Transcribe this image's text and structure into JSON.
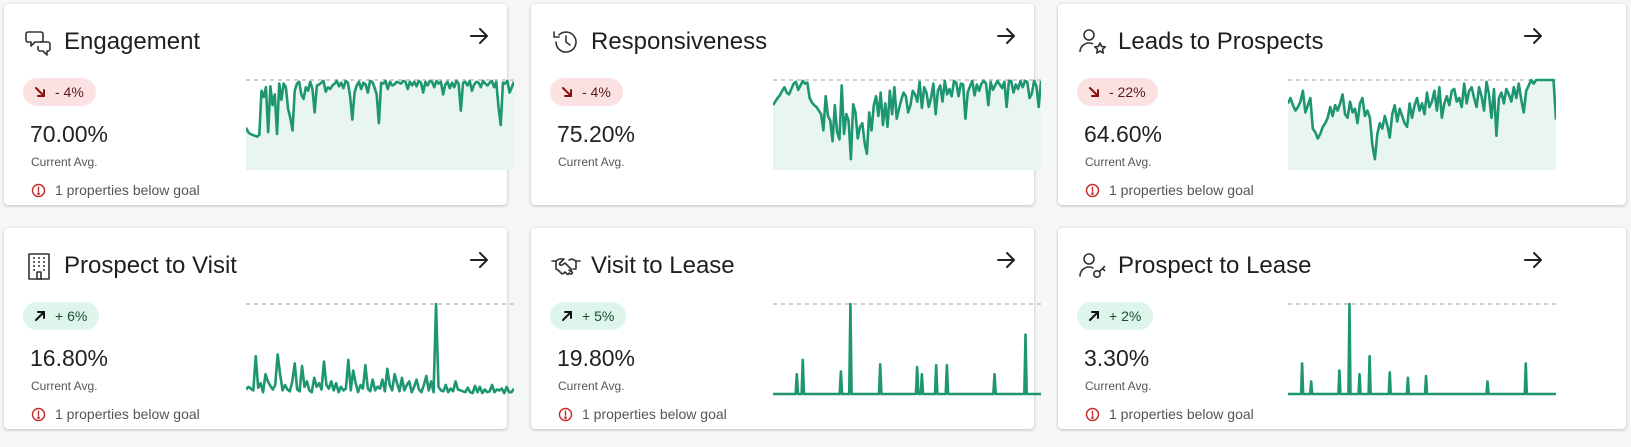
{
  "colors": {
    "line": "#1e9672",
    "fill": "#e9f6f0",
    "goal_dash": "#cfcfcf",
    "down_badge_bg": "#fbe1e1",
    "up_badge_bg": "#ddf5ea",
    "down_arrow": "#8b1010",
    "warn": "#c62828"
  },
  "cards": [
    {
      "title": "Engagement",
      "icon": "chat-bubbles-icon",
      "trend": "down",
      "change": "- 4%",
      "value": "70.00%",
      "caption": "Current Avg.",
      "below_goal": "1 properties below goal",
      "sparkline": {
        "filled": true,
        "goal": 100,
        "values": [
          47,
          42,
          40,
          39,
          38,
          37,
          39,
          88,
          81,
          92,
          42,
          93,
          72,
          84,
          40,
          96,
          78,
          96,
          92,
          68,
          58,
          44,
          88,
          96,
          98,
          84,
          79,
          92,
          88,
          98,
          90,
          64,
          94,
          95,
          97,
          99,
          87,
          92,
          90,
          94,
          96,
          99,
          93,
          97,
          91,
          99,
          97,
          82,
          56,
          86,
          94,
          98,
          90,
          97,
          95,
          86,
          99,
          98,
          92,
          84,
          52,
          97,
          96,
          99,
          90,
          98,
          94,
          95,
          98,
          97,
          96,
          99,
          98,
          90,
          98,
          94,
          98,
          93,
          99,
          97,
          86,
          98,
          94,
          99,
          98,
          92,
          99,
          96,
          98,
          84,
          95,
          98,
          91,
          97,
          92,
          99,
          96,
          66,
          97,
          98,
          94,
          99,
          88,
          95,
          98,
          97,
          92,
          99,
          96,
          94,
          97,
          99,
          92,
          98,
          70,
          50,
          97,
          96,
          99,
          86,
          92,
          98
        ]
      }
    },
    {
      "title": "Responsiveness",
      "icon": "history-clock-icon",
      "trend": "down",
      "change": "- 4%",
      "value": "75.20%",
      "caption": "Current Avg.",
      "below_goal": null,
      "sparkline": {
        "filled": true,
        "goal": 100,
        "values": [
          72,
          76,
          80,
          83,
          88,
          92,
          86,
          84,
          90,
          96,
          98,
          89,
          94,
          99,
          96,
          97,
          80,
          75,
          72,
          70,
          66,
          62,
          44,
          82,
          60,
          55,
          32,
          72,
          42,
          34,
          94,
          40,
          62,
          55,
          12,
          73,
          64,
          35,
          48,
          52,
          30,
          18,
          64,
          44,
          72,
          82,
          60,
          86,
          50,
          74,
          48,
          88,
          62,
          92,
          57,
          68,
          78,
          86,
          82,
          64,
          72,
          88,
          84,
          76,
          98,
          69,
          92,
          86,
          70,
          80,
          96,
          62,
          88,
          94,
          76,
          99,
          84,
          90,
          82,
          99,
          97,
          82,
          96,
          95,
          57,
          86,
          93,
          99,
          83,
          95,
          88,
          96,
          99,
          96,
          72,
          98,
          89,
          94,
          99,
          95,
          91,
          98,
          70,
          99,
          99,
          86,
          95,
          90,
          99,
          92,
          99,
          98,
          80,
          85,
          99,
          93,
          70,
          99
        ]
      }
    },
    {
      "title": "Leads to Prospects",
      "icon": "user-star-icon",
      "trend": "down",
      "change": "- 22%",
      "value": "64.60%",
      "caption": "Current Avg.",
      "below_goal": "1 properties below goal",
      "sparkline": {
        "filled": true,
        "goal": 100,
        "values": [
          74,
          80,
          72,
          66,
          70,
          76,
          88,
          64,
          72,
          80,
          46,
          42,
          35,
          40,
          48,
          52,
          58,
          70,
          60,
          72,
          66,
          74,
          84,
          62,
          58,
          76,
          64,
          68,
          52,
          74,
          80,
          60,
          66,
          58,
          28,
          12,
          40,
          52,
          46,
          60,
          50,
          36,
          62,
          72,
          54,
          68,
          60,
          52,
          48,
          74,
          58,
          72,
          80,
          66,
          74,
          62,
          86,
          70,
          76,
          88,
          66,
          92,
          58,
          74,
          82,
          72,
          88,
          90,
          76,
          80,
          70,
          96,
          74,
          88,
          92,
          80,
          70,
          92,
          82,
          66,
          98,
          84,
          58,
          90,
          38,
          80,
          86,
          74,
          90,
          84,
          76,
          92,
          80,
          96,
          78,
          64,
          88,
          94,
          100,
          96,
          100,
          100,
          100,
          100,
          100,
          100,
          100,
          100,
          56
        ]
      }
    },
    {
      "title": "Prospect to Visit",
      "icon": "building-icon",
      "trend": "up",
      "change": "+ 6%",
      "value": "16.80%",
      "caption": "Current Avg.",
      "below_goal": "1 properties below goal",
      "sparkline": {
        "filled": false,
        "goal": 100,
        "values": [
          5,
          8,
          6,
          4,
          42,
          7,
          12,
          2,
          22,
          14,
          9,
          5,
          10,
          44,
          22,
          4,
          10,
          5,
          3,
          14,
          34,
          5,
          3,
          31,
          8,
          14,
          4,
          2,
          18,
          8,
          12,
          5,
          36,
          10,
          6,
          14,
          4,
          12,
          2,
          8,
          4,
          6,
          38,
          4,
          26,
          12,
          2,
          10,
          6,
          32,
          6,
          3,
          16,
          4,
          8,
          6,
          16,
          3,
          28,
          10,
          4,
          22,
          12,
          3,
          18,
          4,
          10,
          14,
          2,
          8,
          16,
          5,
          2,
          10,
          20,
          4,
          14,
          2,
          100,
          8,
          4,
          3,
          10,
          2,
          6,
          3,
          14,
          5,
          4,
          3,
          2,
          7,
          2,
          1,
          9,
          2,
          8,
          1,
          5,
          2,
          3,
          10,
          2,
          5,
          4,
          6,
          1,
          8,
          2,
          2,
          6
        ]
      }
    },
    {
      "title": "Visit to Lease",
      "icon": "handshake-icon",
      "trend": "up",
      "change": "+ 5%",
      "value": "19.80%",
      "caption": "Current Avg.",
      "below_goal": "1 properties below goal",
      "sparkline": {
        "filled": false,
        "goal": 100,
        "values": [
          0,
          0,
          0,
          0,
          0,
          0,
          0,
          0,
          0,
          0,
          0,
          0,
          0,
          0,
          0,
          0,
          0,
          0,
          0,
          0,
          22,
          0,
          0,
          0,
          0,
          38,
          0,
          0,
          0,
          0,
          0,
          0,
          0,
          0,
          0,
          0,
          0,
          0,
          0,
          0,
          0,
          0,
          0,
          0,
          0,
          0,
          0,
          0,
          0,
          0,
          0,
          0,
          0,
          0,
          0,
          0,
          0,
          25,
          0,
          0,
          0,
          0,
          0,
          0,
          0,
          100,
          0,
          0,
          0,
          0,
          0,
          0,
          0,
          0,
          0,
          0,
          0,
          0,
          0,
          0,
          0,
          0,
          0,
          0,
          0,
          0,
          0,
          0,
          0,
          0,
          33,
          0,
          0,
          0,
          0,
          0,
          0,
          0,
          0,
          0,
          0,
          0,
          0,
          0,
          0,
          0,
          0,
          0,
          0,
          0,
          0,
          0,
          0,
          0,
          0,
          0,
          0,
          0,
          0,
          0,
          0,
          30,
          0,
          0,
          0,
          22,
          0,
          0,
          0,
          0,
          0,
          0,
          0,
          0,
          0,
          0,
          0,
          32,
          0,
          0,
          0,
          0,
          0,
          0,
          0,
          0,
          32,
          0,
          0,
          0,
          0,
          0,
          0,
          0,
          0,
          0,
          0,
          0,
          0,
          0,
          0,
          0,
          0,
          0,
          0,
          0,
          0,
          0,
          0,
          0,
          0,
          0,
          0,
          0,
          0,
          0,
          0,
          0,
          0,
          0,
          0,
          0,
          0,
          0,
          0,
          0,
          22,
          0,
          0,
          0,
          0,
          0,
          0,
          0,
          0,
          0,
          0,
          0,
          0,
          0,
          0,
          0,
          0,
          0,
          0,
          0,
          0,
          0,
          0,
          0,
          0,
          0,
          66,
          0,
          0,
          0,
          0,
          0,
          0,
          0,
          0,
          0,
          0,
          0,
          0,
          0
        ]
      }
    },
    {
      "title": "Prospect to Lease",
      "icon": "user-key-icon",
      "trend": "up",
      "change": "+ 2%",
      "value": "3.30%",
      "caption": "Current Avg.",
      "below_goal": "1 properties below goal",
      "sparkline": {
        "filled": false,
        "goal": 100,
        "values": [
          0,
          0,
          0,
          0,
          0,
          0,
          0,
          0,
          0,
          0,
          0,
          0,
          0,
          0,
          34,
          0,
          0,
          0,
          0,
          0,
          0,
          0,
          0,
          14,
          0,
          0,
          0,
          0,
          0,
          0,
          0,
          0,
          0,
          0,
          0,
          0,
          0,
          0,
          0,
          0,
          0,
          0,
          0,
          0,
          0,
          0,
          0,
          0,
          0,
          0,
          0,
          26,
          0,
          0,
          0,
          0,
          0,
          0,
          0,
          0,
          0,
          100,
          0,
          0,
          0,
          0,
          0,
          0,
          0,
          0,
          0,
          22,
          0,
          0,
          0,
          0,
          0,
          0,
          0,
          0,
          0,
          42,
          0,
          0,
          0,
          0,
          0,
          0,
          0,
          0,
          0,
          0,
          0,
          0,
          0,
          0,
          0,
          0,
          0,
          0,
          0,
          24,
          0,
          0,
          0,
          0,
          0,
          0,
          0,
          0,
          0,
          0,
          0,
          0,
          0,
          0,
          0,
          0,
          0,
          18,
          0,
          0,
          0,
          0,
          0,
          0,
          0,
          0,
          0,
          0,
          0,
          0,
          0,
          0,
          0,
          0,
          0,
          20,
          0,
          0,
          0,
          0,
          0,
          0,
          0,
          0,
          0,
          0,
          0,
          0,
          0,
          0,
          0,
          0,
          0,
          0,
          0,
          0,
          0,
          0,
          0,
          0,
          0,
          0,
          0,
          0,
          0,
          0,
          0,
          0,
          0,
          0,
          0,
          0,
          0,
          0,
          0,
          0,
          0,
          0,
          0,
          0,
          0,
          0,
          0,
          0,
          0,
          0,
          0,
          0,
          0,
          0,
          0,
          0,
          0,
          0,
          0,
          0,
          14,
          0,
          0,
          0,
          0,
          0,
          0,
          0,
          0,
          0,
          0,
          0,
          0,
          0,
          0,
          0,
          0,
          0,
          0,
          0,
          0,
          0,
          0,
          0,
          0,
          0,
          0,
          0,
          0,
          0,
          0,
          0,
          0,
          0,
          0,
          0,
          0,
          0,
          34,
          0,
          0,
          0,
          0,
          0,
          0,
          0,
          0,
          0,
          0,
          0,
          0,
          0,
          0,
          0,
          0,
          0,
          0,
          0,
          0,
          0,
          0,
          0,
          0,
          0,
          0,
          0,
          0,
          0,
          0
        ]
      }
    }
  ]
}
